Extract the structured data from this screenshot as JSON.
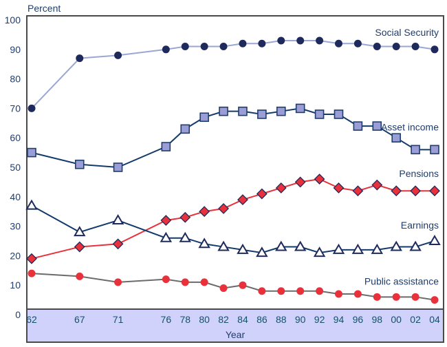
{
  "chart_data": {
    "type": "line",
    "title": "",
    "ylabel": "Percent",
    "xlabel": "Year",
    "ylim": [
      0,
      100
    ],
    "yticks": [
      "0",
      "10",
      "20",
      "30",
      "40",
      "50",
      "60",
      "70",
      "80",
      "90",
      "100"
    ],
    "x": [
      1962,
      1967,
      1971,
      1976,
      1978,
      1980,
      1982,
      1984,
      1986,
      1988,
      1990,
      1992,
      1994,
      1996,
      1998,
      2000,
      2002,
      2004
    ],
    "xtick_labels": [
      "62",
      "67",
      "71",
      "76",
      "78",
      "80",
      "82",
      "84",
      "86",
      "88",
      "90",
      "92",
      "94",
      "96",
      "98",
      "00",
      "02",
      "04"
    ],
    "grid": false,
    "legend": "inline-right",
    "series": [
      {
        "name": "Social Security",
        "marker": "circle",
        "line_color": "#9aa6d6",
        "marker_color": "#1f2a5c",
        "values": [
          70,
          87,
          88,
          90,
          91,
          91,
          91,
          92,
          92,
          93,
          93,
          93,
          92,
          92,
          91,
          91,
          91,
          90
        ]
      },
      {
        "name": "Asset income",
        "marker": "square",
        "line_color": "#123a6b",
        "marker_color": "#9b9ed6",
        "values": [
          55,
          51,
          50,
          57,
          63,
          67,
          69,
          69,
          68,
          69,
          70,
          68,
          68,
          64,
          64,
          60,
          56,
          56
        ]
      },
      {
        "name": "Pensions",
        "marker": "diamond",
        "line_color": "#e8313a",
        "marker_color": "#e8313a",
        "values": [
          19,
          23,
          24,
          32,
          33,
          35,
          36,
          39,
          41,
          43,
          45,
          46,
          43,
          42,
          44,
          42,
          42,
          42
        ]
      },
      {
        "name": "Earnings",
        "marker": "triangle",
        "line_color": "#123a6b",
        "marker_color": "#ffffff",
        "values": [
          37,
          28,
          32,
          26,
          26,
          24,
          23,
          22,
          21,
          23,
          23,
          21,
          22,
          22,
          22,
          23,
          23,
          25
        ]
      },
      {
        "name": "Public assistance",
        "marker": "circle",
        "line_color": "#6b6b6b",
        "marker_color": "#e8313a",
        "values": [
          14,
          13,
          11,
          12,
          11,
          11,
          9,
          10,
          8,
          8,
          8,
          8,
          7,
          7,
          6,
          6,
          6,
          5
        ]
      }
    ]
  }
}
